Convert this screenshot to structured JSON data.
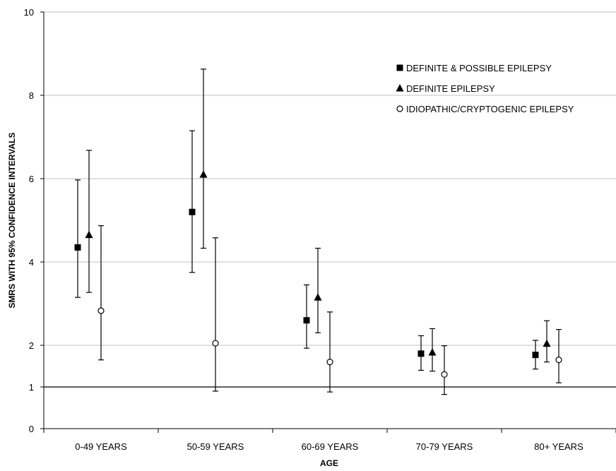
{
  "chart_data": {
    "type": "scatter",
    "subtype": "error-bar",
    "title": "",
    "xlabel": "AGE",
    "ylabel": "SMRS WITH 95% CONFIDENCE INTERVALS",
    "ylim": [
      0,
      10
    ],
    "y_ticks": [
      0,
      1,
      2,
      4,
      6,
      8,
      10
    ],
    "reference_line": 1,
    "grid": "horizontal",
    "legend_position": "top-right",
    "categories": [
      "0-49 YEARS",
      "50-59 YEARS",
      "60-69 YEARS",
      "70-79 YEARS",
      "80+ YEARS"
    ],
    "series": [
      {
        "name": "DEFINITE & POSSIBLE EPILEPSY",
        "marker": "square",
        "values": [
          4.35,
          5.2,
          2.6,
          1.8,
          1.77
        ],
        "lower": [
          3.15,
          3.75,
          1.93,
          1.4,
          1.43
        ],
        "upper": [
          5.97,
          7.15,
          3.45,
          2.23,
          2.12
        ]
      },
      {
        "name": "DEFINITE EPILEPSY",
        "marker": "triangle",
        "values": [
          4.65,
          6.1,
          3.15,
          1.83,
          2.04
        ],
        "lower": [
          3.27,
          4.33,
          2.3,
          1.38,
          1.6
        ],
        "upper": [
          6.68,
          8.63,
          4.33,
          2.4,
          2.59
        ]
      },
      {
        "name": "IDIOPATHIC/CRYPTOGENIC EPILEPSY",
        "marker": "circle",
        "values": [
          2.83,
          2.05,
          1.6,
          1.3,
          1.65
        ],
        "lower": [
          1.65,
          0.9,
          0.88,
          0.82,
          1.1
        ],
        "upper": [
          4.87,
          4.58,
          2.8,
          1.99,
          2.38
        ]
      }
    ]
  }
}
